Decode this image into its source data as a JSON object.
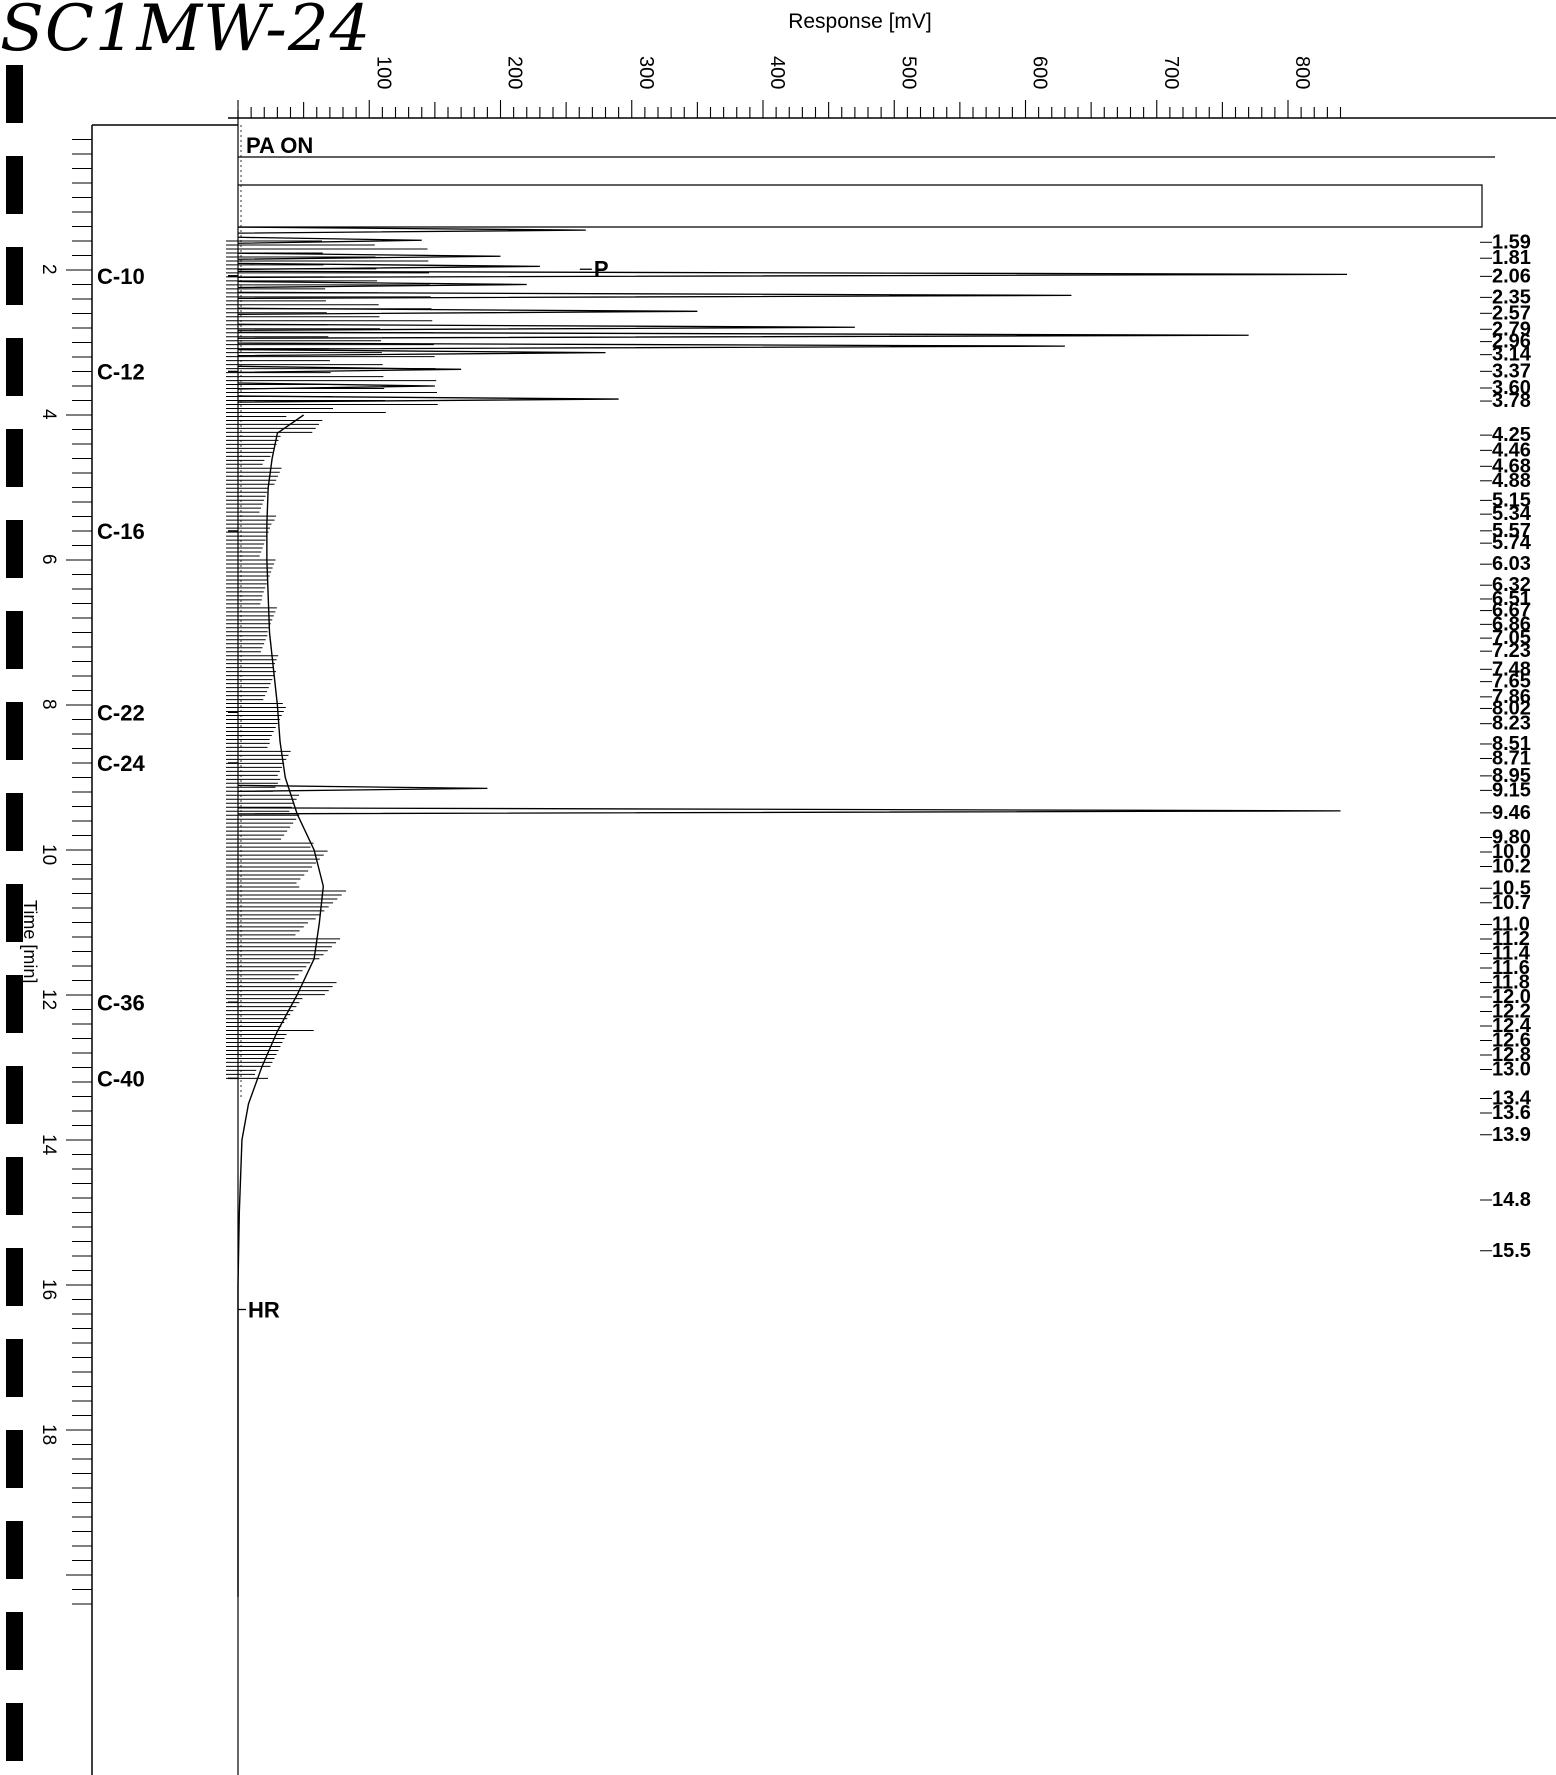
{
  "sample_id": "SC1MW-24",
  "chart_data": {
    "type": "line",
    "orientation": "rotated-90",
    "title": "",
    "ylabel": "Response [mV]",
    "xlabel": "Time [min]",
    "response_ticks": [
      100,
      200,
      300,
      400,
      500,
      600,
      700,
      800
    ],
    "time_ticks": [
      2,
      4,
      6,
      8,
      10,
      12,
      14,
      16,
      18
    ],
    "time_range": [
      0,
      20.3
    ],
    "response_range": [
      -85,
      840
    ],
    "events": [
      {
        "label": "PA ON",
        "time": 0.4
      },
      {
        "label": "P",
        "time": 1.3,
        "response": 265
      },
      {
        "label": "HR",
        "time": 16.2
      }
    ],
    "carbon_markers": [
      {
        "label": "C-10",
        "time": 2.08
      },
      {
        "label": "C-12",
        "time": 3.4
      },
      {
        "label": "C-16",
        "time": 5.6
      },
      {
        "label": "C-22",
        "time": 8.1
      },
      {
        "label": "C-24",
        "time": 8.8
      },
      {
        "label": "C-36",
        "time": 12.1
      },
      {
        "label": "C-40",
        "time": 13.15
      }
    ],
    "peak_labels": [
      "1.59",
      "1.81",
      "2.06",
      "2.35",
      "2.57",
      "2.79",
      "2.96",
      "3.14",
      "3.37",
      "3.60",
      "3.78",
      "4.25",
      "4.46",
      "4.68",
      "4.88",
      "5.15",
      "5.34",
      "5.57",
      "5.74",
      "6.03",
      "6.32",
      "6.51",
      "6.67",
      "6.86",
      "7.05",
      "7.23",
      "7.48",
      "7.65",
      "7.86",
      "8.02",
      "8.23",
      "8.51",
      "8.71",
      "8.95",
      "9.15",
      "9.46",
      "9.80",
      "10.0",
      "10.2",
      "10.5",
      "10.7",
      "11.0",
      "11.2",
      "11.4",
      "11.6",
      "11.8",
      "12.0",
      "12.2",
      "12.4",
      "12.6",
      "12.8",
      "13.0",
      "13.4",
      "13.6",
      "13.9",
      "14.8",
      "15.5"
    ],
    "peaks": [
      {
        "time": 1.45,
        "response": 265
      },
      {
        "time": 1.59,
        "response": 140
      },
      {
        "time": 1.81,
        "response": 200
      },
      {
        "time": 1.95,
        "response": 230
      },
      {
        "time": 2.06,
        "response": 845
      },
      {
        "time": 2.2,
        "response": 220
      },
      {
        "time": 2.35,
        "response": 635
      },
      {
        "time": 2.57,
        "response": 350
      },
      {
        "time": 2.79,
        "response": 470
      },
      {
        "time": 2.9,
        "response": 770
      },
      {
        "time": 3.05,
        "response": 630
      },
      {
        "time": 3.14,
        "response": 280
      },
      {
        "time": 3.37,
        "response": 170
      },
      {
        "time": 3.6,
        "response": 150
      },
      {
        "time": 3.78,
        "response": 290
      },
      {
        "time": 9.15,
        "response": 190
      },
      {
        "time": 9.46,
        "response": 840
      }
    ],
    "baseline": [
      {
        "time": 4.0,
        "response": 50
      },
      {
        "time": 4.25,
        "response": 30
      },
      {
        "time": 4.6,
        "response": 26
      },
      {
        "time": 5.0,
        "response": 23
      },
      {
        "time": 5.5,
        "response": 22
      },
      {
        "time": 6.0,
        "response": 22
      },
      {
        "time": 6.5,
        "response": 23
      },
      {
        "time": 7.0,
        "response": 24
      },
      {
        "time": 7.5,
        "response": 27
      },
      {
        "time": 8.0,
        "response": 30
      },
      {
        "time": 8.5,
        "response": 32
      },
      {
        "time": 9.0,
        "response": 36
      },
      {
        "time": 9.5,
        "response": 45
      },
      {
        "time": 10.0,
        "response": 58
      },
      {
        "time": 10.5,
        "response": 65
      },
      {
        "time": 11.0,
        "response": 62
      },
      {
        "time": 11.5,
        "response": 58
      },
      {
        "time": 12.0,
        "response": 45
      },
      {
        "time": 12.5,
        "response": 30
      },
      {
        "time": 13.0,
        "response": 18
      },
      {
        "time": 13.5,
        "response": 8
      },
      {
        "time": 14.0,
        "response": 3
      },
      {
        "time": 15.0,
        "response": 1
      },
      {
        "time": 16.0,
        "response": 0
      },
      {
        "time": 20.3,
        "response": 0
      }
    ]
  }
}
